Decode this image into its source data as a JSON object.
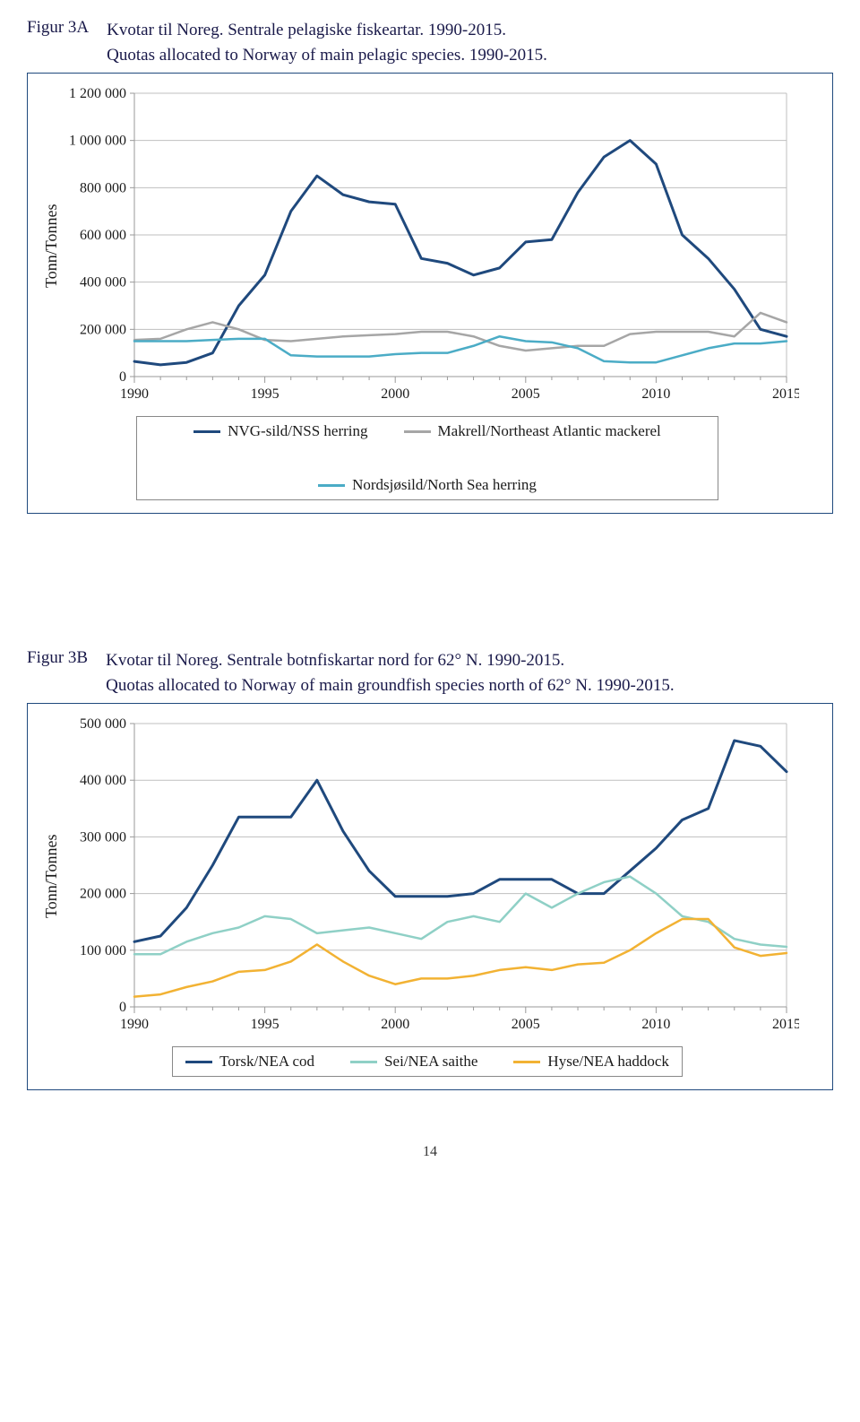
{
  "pageNumber": "14",
  "figA": {
    "label": "Figur 3A",
    "title1": "Kvotar til Noreg. Sentrale pelagiske fiskeartar. 1990-2015.",
    "title2": "Quotas allocated to Norway of main pelagic species. 1990-2015.",
    "ylabel": "Tonn/Tonnes",
    "type": "line",
    "xlim": [
      1990,
      2015
    ],
    "ylim": [
      0,
      1200000
    ],
    "yticks": [
      0,
      200000,
      400000,
      600000,
      800000,
      1000000,
      1200000
    ],
    "ytick_labels": [
      "0",
      "200 000",
      "400 000",
      "600 000",
      "800 000",
      "1 000 000",
      "1 200 000"
    ],
    "xticks": [
      1990,
      1995,
      2000,
      2005,
      2010,
      2015
    ],
    "xtick_labels": [
      "1990",
      "1995",
      "2000",
      "2005",
      "2010",
      "2015"
    ],
    "grid_color": "#bfbfbf",
    "plot_border_color": "#bfbfbf",
    "minor_ticks_every": 1,
    "series": [
      {
        "name": "NVG-sild/NSS herring",
        "color": "#1f497d",
        "width": 3,
        "x": [
          1990,
          1991,
          1992,
          1993,
          1994,
          1995,
          1996,
          1997,
          1998,
          1999,
          2000,
          2001,
          2002,
          2003,
          2004,
          2005,
          2006,
          2007,
          2008,
          2009,
          2010,
          2011,
          2012,
          2013,
          2014,
          2015
        ],
        "y": [
          64000,
          50000,
          60000,
          100000,
          300000,
          430000,
          700000,
          850000,
          770000,
          740000,
          730000,
          500000,
          480000,
          430000,
          460000,
          570000,
          580000,
          780000,
          930000,
          1000000,
          900000,
          600000,
          500000,
          370000,
          200000,
          170000
        ]
      },
      {
        "name": "Makrell/Northeast Atlantic mackerel",
        "color": "#a6a6a6",
        "width": 2.5,
        "x": [
          1990,
          1991,
          1992,
          1993,
          1994,
          1995,
          1996,
          1997,
          1998,
          1999,
          2000,
          2001,
          2002,
          2003,
          2004,
          2005,
          2006,
          2007,
          2008,
          2009,
          2010,
          2011,
          2012,
          2013,
          2014,
          2015
        ],
        "y": [
          155000,
          160000,
          200000,
          230000,
          200000,
          155000,
          150000,
          160000,
          170000,
          175000,
          180000,
          190000,
          190000,
          170000,
          130000,
          110000,
          120000,
          130000,
          130000,
          180000,
          190000,
          190000,
          190000,
          170000,
          270000,
          230000
        ]
      },
      {
        "name": "Nordsjøsild/North Sea herring",
        "color": "#4bacc6",
        "width": 2.5,
        "x": [
          1990,
          1991,
          1992,
          1993,
          1994,
          1995,
          1996,
          1997,
          1998,
          1999,
          2000,
          2001,
          2002,
          2003,
          2004,
          2005,
          2006,
          2007,
          2008,
          2009,
          2010,
          2011,
          2012,
          2013,
          2014,
          2015
        ],
        "y": [
          150000,
          150000,
          150000,
          155000,
          160000,
          160000,
          90000,
          85000,
          85000,
          85000,
          95000,
          100000,
          100000,
          130000,
          170000,
          150000,
          145000,
          120000,
          65000,
          60000,
          60000,
          90000,
          120000,
          140000,
          140000,
          150000
        ]
      }
    ],
    "legend": {
      "layout": "2col",
      "items": [
        {
          "label": "NVG-sild/NSS herring",
          "color": "#1f497d"
        },
        {
          "label": "Makrell/Northeast Atlantic mackerel",
          "color": "#a6a6a6"
        },
        {
          "label": "Nordsjøsild/North Sea herring",
          "color": "#4bacc6"
        }
      ]
    }
  },
  "figB": {
    "label": "Figur 3B",
    "title1": "Kvotar til Noreg. Sentrale botnfiskartar nord for 62° N. 1990-2015.",
    "title2": "Quotas allocated to Norway of main groundfish species north of 62° N. 1990-2015.",
    "ylabel": "Tonn/Tonnes",
    "type": "line",
    "xlim": [
      1990,
      2015
    ],
    "ylim": [
      0,
      500000
    ],
    "yticks": [
      0,
      100000,
      200000,
      300000,
      400000,
      500000
    ],
    "ytick_labels": [
      "0",
      "100 000",
      "200 000",
      "300 000",
      "400 000",
      "500 000"
    ],
    "xticks": [
      1990,
      1995,
      2000,
      2005,
      2010,
      2015
    ],
    "xtick_labels": [
      "1990",
      "1995",
      "2000",
      "2005",
      "2010",
      "2015"
    ],
    "grid_color": "#bfbfbf",
    "plot_border_color": "#bfbfbf",
    "minor_ticks_every": 1,
    "series": [
      {
        "name": "Torsk/NEA cod",
        "color": "#1f497d",
        "width": 3,
        "x": [
          1990,
          1991,
          1992,
          1993,
          1994,
          1995,
          1996,
          1997,
          1998,
          1999,
          2000,
          2001,
          2002,
          2003,
          2004,
          2005,
          2006,
          2007,
          2008,
          2009,
          2010,
          2011,
          2012,
          2013,
          2014,
          2015
        ],
        "y": [
          115000,
          125000,
          175000,
          250000,
          335000,
          335000,
          335000,
          400000,
          310000,
          240000,
          195000,
          195000,
          195000,
          200000,
          225000,
          225000,
          225000,
          200000,
          200000,
          240000,
          280000,
          330000,
          350000,
          470000,
          460000,
          415000
        ]
      },
      {
        "name": "Sei/NEA saithe",
        "color": "#8fd0c6",
        "width": 2.5,
        "x": [
          1990,
          1991,
          1992,
          1993,
          1994,
          1995,
          1996,
          1997,
          1998,
          1999,
          2000,
          2001,
          2002,
          2003,
          2004,
          2005,
          2006,
          2007,
          2008,
          2009,
          2010,
          2011,
          2012,
          2013,
          2014,
          2015
        ],
        "y": [
          93000,
          93000,
          115000,
          130000,
          140000,
          160000,
          155000,
          130000,
          135000,
          140000,
          130000,
          120000,
          150000,
          160000,
          150000,
          200000,
          175000,
          200000,
          220000,
          230000,
          200000,
          160000,
          150000,
          120000,
          110000,
          106000
        ]
      },
      {
        "name": "Hyse/NEA haddock",
        "color": "#f2b233",
        "width": 2.5,
        "x": [
          1990,
          1991,
          1992,
          1993,
          1994,
          1995,
          1996,
          1997,
          1998,
          1999,
          2000,
          2001,
          2002,
          2003,
          2004,
          2005,
          2006,
          2007,
          2008,
          2009,
          2010,
          2011,
          2012,
          2013,
          2014,
          2015
        ],
        "y": [
          18000,
          22000,
          35000,
          45000,
          62000,
          65000,
          80000,
          110000,
          80000,
          55000,
          40000,
          50000,
          50000,
          55000,
          65000,
          70000,
          65000,
          75000,
          78000,
          100000,
          130000,
          155000,
          155000,
          105000,
          90000,
          95000
        ]
      }
    ],
    "legend": {
      "layout": "1row",
      "items": [
        {
          "label": "Torsk/NEA cod",
          "color": "#1f497d"
        },
        {
          "label": "Sei/NEA saithe",
          "color": "#8fd0c6"
        },
        {
          "label": "Hyse/NEA haddock",
          "color": "#f2b233"
        }
      ]
    }
  }
}
